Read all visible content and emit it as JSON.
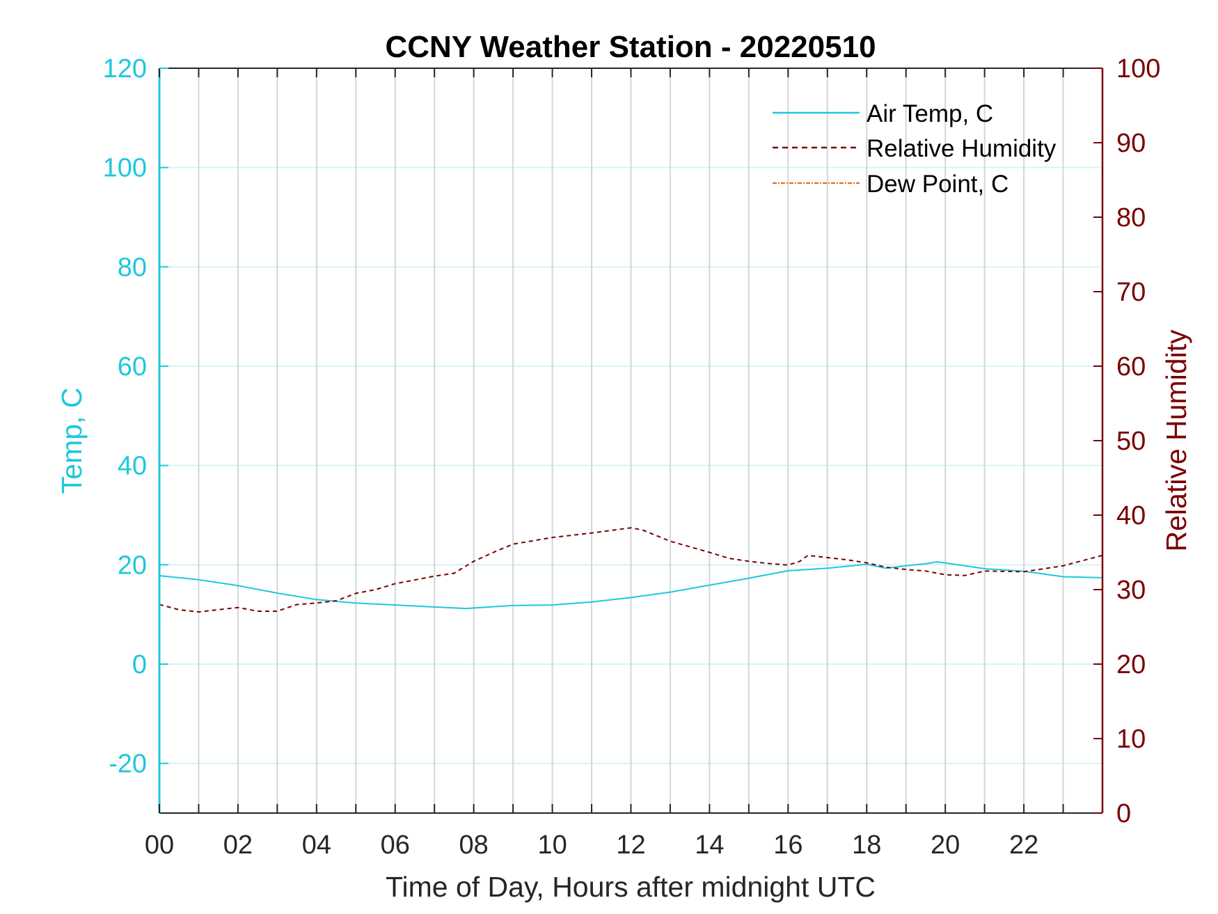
{
  "chart_data": {
    "type": "line",
    "title": "CCNY Weather Station - 20220510",
    "xlabel": "Time of Day, Hours after midnight UTC",
    "ylabel_left": "Temp, C",
    "ylabel_right": "Relative Humidity",
    "xlim": [
      0,
      24
    ],
    "ylim_left": [
      -30,
      120
    ],
    "ylim_right": [
      0,
      100
    ],
    "x_ticks": [
      0,
      1,
      2,
      3,
      4,
      5,
      6,
      7,
      8,
      9,
      10,
      11,
      12,
      13,
      14,
      15,
      16,
      17,
      18,
      19,
      20,
      21,
      22,
      23
    ],
    "x_tick_labels": [
      "00",
      "02",
      "04",
      "06",
      "08",
      "10",
      "12",
      "14",
      "16",
      "18",
      "20",
      "22"
    ],
    "y_left_ticks": [
      -20,
      0,
      20,
      40,
      60,
      80,
      100,
      120
    ],
    "y_right_ticks": [
      0,
      10,
      20,
      30,
      40,
      50,
      60,
      70,
      80,
      90,
      100
    ],
    "grid": true,
    "legend_position": "top-right",
    "colors": {
      "air_temp": "#1ec8dc",
      "humidity": "#7a0000",
      "dew_point": "#e8650f",
      "grid_vertical": "#d3d6da",
      "grid_horizontal": "#d8f3f6"
    },
    "series": [
      {
        "name": "Air Temp, C",
        "axis": "left",
        "style": "solid",
        "x": [
          0,
          1,
          2,
          3,
          4,
          5,
          6,
          7,
          7.8,
          9,
          10,
          11,
          12,
          13,
          14,
          15,
          16,
          17,
          18,
          18.5,
          19,
          19.5,
          19.8,
          20.5,
          21,
          22,
          23,
          24
        ],
        "y": [
          17.8,
          17.0,
          15.8,
          14.3,
          13.0,
          12.3,
          11.9,
          11.5,
          11.2,
          11.8,
          11.9,
          12.5,
          13.4,
          14.5,
          15.9,
          17.3,
          18.8,
          19.3,
          20.1,
          19.3,
          19.8,
          20.2,
          20.6,
          19.8,
          19.2,
          18.7,
          17.6,
          17.4
        ]
      },
      {
        "name": "Relative Humidity",
        "axis": "right",
        "style": "dashed",
        "x": [
          0,
          0.5,
          1,
          2,
          2.5,
          3,
          3.5,
          4,
          4.5,
          5,
          5.5,
          6,
          6.5,
          7,
          7.5,
          8,
          8.5,
          9,
          10,
          11,
          12,
          12.3,
          13,
          14,
          14.5,
          15,
          15.5,
          16,
          16.3,
          16.5,
          17,
          17.5,
          18,
          18.5,
          19,
          19.5,
          20,
          20.5,
          21,
          22,
          23,
          24
        ],
        "y": [
          28.0,
          27.3,
          27.0,
          27.6,
          27.1,
          27.1,
          28.0,
          28.2,
          28.5,
          29.5,
          30.0,
          30.8,
          31.3,
          31.8,
          32.2,
          33.8,
          35.0,
          36.1,
          37.0,
          37.6,
          38.3,
          38.0,
          36.5,
          35.0,
          34.2,
          33.8,
          33.5,
          33.3,
          33.8,
          34.6,
          34.3,
          34.0,
          33.6,
          33.0,
          32.7,
          32.5,
          32.0,
          31.9,
          32.5,
          32.4,
          33.2,
          34.6
        ]
      },
      {
        "name": "Dew Point, C",
        "axis": "left",
        "style": "dash-dot",
        "x": [],
        "y": []
      }
    ]
  }
}
